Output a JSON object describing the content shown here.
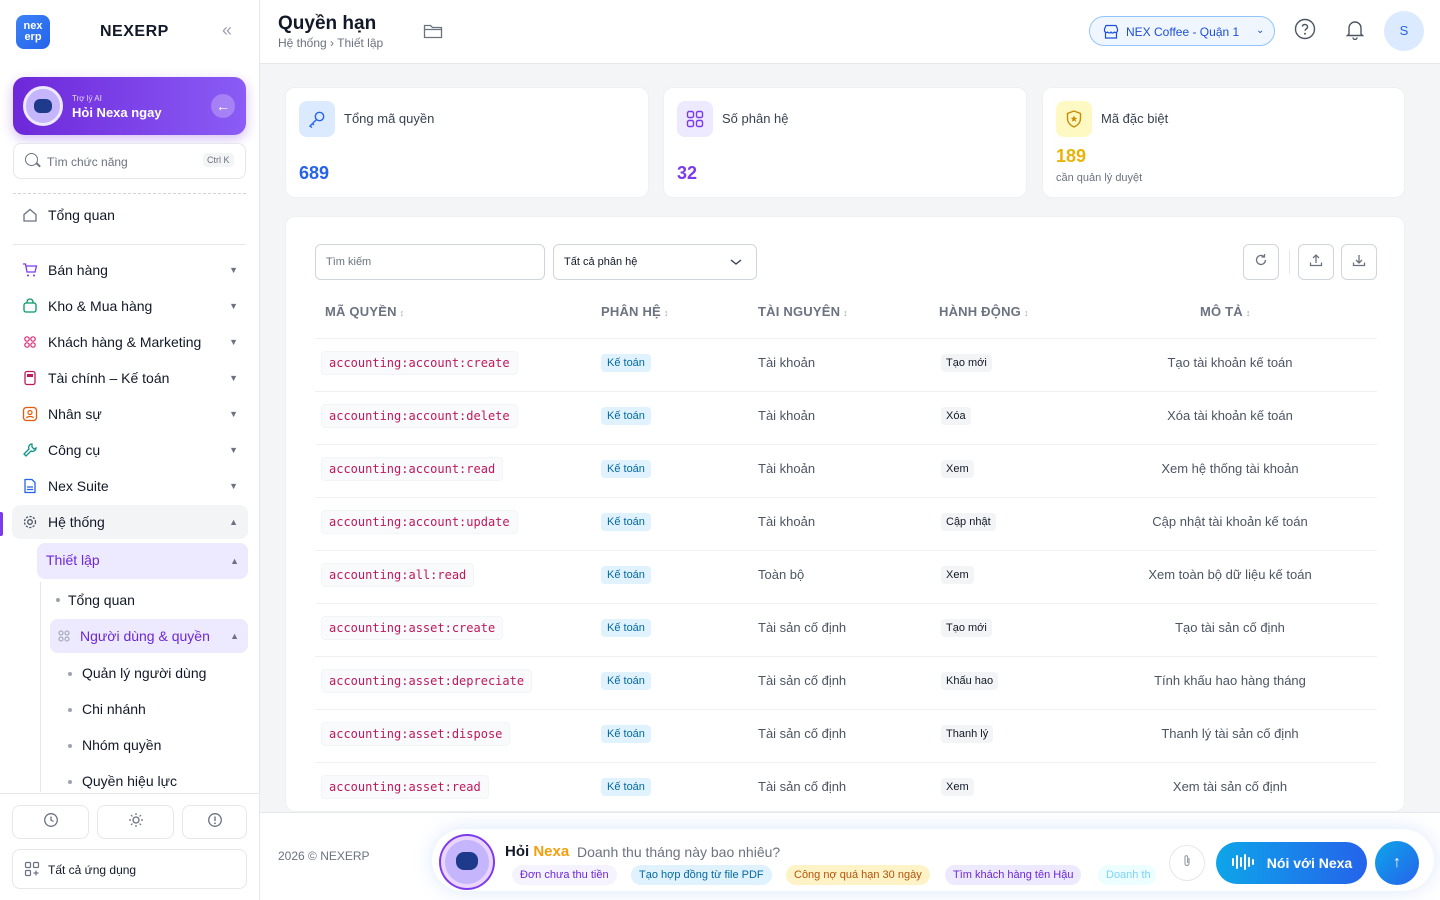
{
  "sidebar": {
    "brand_text": "nex erp",
    "brand_name": "NEXERP",
    "collapse_icon": "«",
    "ai": {
      "subtitle": "Trợ lý AI",
      "title": "Hỏi Nexa ngay"
    },
    "search": {
      "placeholder": "Tìm chức năng",
      "shortcut": "Ctrl K"
    },
    "overview": "Tổng quan",
    "items": [
      {
        "label": "Bán hàng",
        "icon": "cart-icon"
      },
      {
        "label": "Kho & Mua hàng",
        "icon": "bag-icon"
      },
      {
        "label": "Khách hàng & Marketing",
        "icon": "users-icon"
      },
      {
        "label": "Tài chính – Kế toán",
        "icon": "calculator-icon"
      },
      {
        "label": "Nhân sự",
        "icon": "person-icon"
      },
      {
        "label": "Công cụ",
        "icon": "wrench-icon"
      },
      {
        "label": "Nex Suite",
        "icon": "document-icon"
      },
      {
        "label": "Hệ thống",
        "icon": "gear-icon"
      }
    ],
    "sub": {
      "setup": "Thiết lập",
      "overview": "Tổng quan",
      "users_perms": "Người dùng & quyền",
      "leaf": [
        "Quản lý người dùng",
        "Chi nhánh",
        "Nhóm quyền",
        "Quyền hiệu lực"
      ]
    },
    "all_apps": "Tất cả ứng dụng"
  },
  "header": {
    "title": "Quyền hạn",
    "breadcrumb": "Hệ thống › Thiết lập",
    "store": "NEX Coffee - Quận 1",
    "avatar": "S"
  },
  "stats": [
    {
      "label": "Tổng mã quyền",
      "value": "689",
      "color": "#2563eb"
    },
    {
      "label": "Số phân hệ",
      "value": "32",
      "color": "#7c3aed"
    },
    {
      "label": "Mã đặc biệt",
      "value": "189",
      "note": "cần quản lý duyệt",
      "color": "#eab308"
    }
  ],
  "table": {
    "search_placeholder": "Tìm kiếm",
    "filter": "Tất cả phân hệ",
    "headers": [
      "MÃ QUYỀN",
      "PHÂN HỆ",
      "TÀI NGUYÊN",
      "HÀNH ĐỘNG",
      "MÔ TẢ"
    ],
    "sort_icon": "↕",
    "rows": [
      {
        "code": "accounting:account:create",
        "module": "Kế toán",
        "resource": "Tài khoản",
        "action": "Tạo mới",
        "desc": "Tạo tài khoản kế toán"
      },
      {
        "code": "accounting:account:delete",
        "module": "Kế toán",
        "resource": "Tài khoản",
        "action": "Xóa",
        "desc": "Xóa tài khoản kế toán"
      },
      {
        "code": "accounting:account:read",
        "module": "Kế toán",
        "resource": "Tài khoản",
        "action": "Xem",
        "desc": "Xem hệ thống tài khoản"
      },
      {
        "code": "accounting:account:update",
        "module": "Kế toán",
        "resource": "Tài khoản",
        "action": "Cập nhật",
        "desc": "Cập nhật tài khoản kế toán"
      },
      {
        "code": "accounting:all:read",
        "module": "Kế toán",
        "resource": "Toàn bộ",
        "action": "Xem",
        "desc": "Xem toàn bộ dữ liệu kế toán"
      },
      {
        "code": "accounting:asset:create",
        "module": "Kế toán",
        "resource": "Tài sản cố định",
        "action": "Tạo mới",
        "desc": "Tạo tài sản cố định"
      },
      {
        "code": "accounting:asset:depreciate",
        "module": "Kế toán",
        "resource": "Tài sản cố định",
        "action": "Khấu hao",
        "desc": "Tính khấu hao hàng tháng"
      },
      {
        "code": "accounting:asset:dispose",
        "module": "Kế toán",
        "resource": "Tài sản cố định",
        "action": "Thanh lý",
        "desc": "Thanh lý tài sản cố định"
      },
      {
        "code": "accounting:asset:read",
        "module": "Kế toán",
        "resource": "Tài sản cố định",
        "action": "Xem",
        "desc": "Xem tài sản cố định"
      }
    ]
  },
  "footer": {
    "copyright": "2026 © NEXERP",
    "ask_prefix": "Hỏi",
    "ask_name": "Nexa",
    "question": "Doanh thu tháng này bao nhiêu?",
    "chips": [
      "Đơn chưa thu tiền",
      "Tạo hợp đồng từ file PDF",
      "Công nợ quá hạn 30 ngày",
      "Tìm khách hàng tên Hậu",
      "Doanh th"
    ],
    "talk": "Nói với Nexa",
    "send_icon": "↑"
  }
}
